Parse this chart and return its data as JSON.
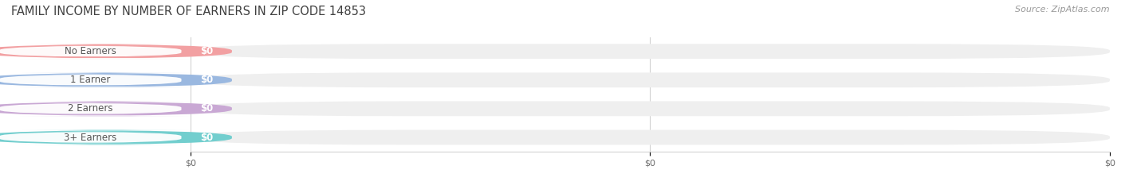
{
  "title": "FAMILY INCOME BY NUMBER OF EARNERS IN ZIP CODE 14853",
  "source": "Source: ZipAtlas.com",
  "categories": [
    "No Earners",
    "1 Earner",
    "2 Earners",
    "3+ Earners"
  ],
  "values": [
    0,
    0,
    0,
    0
  ],
  "bar_colors": [
    "#f2a0a2",
    "#9ab8e0",
    "#c9a8d4",
    "#72cece"
  ],
  "bg_bar_color": "#efefef",
  "category_label_color": "#555555",
  "title_color": "#404040",
  "source_color": "#999999",
  "figsize": [
    14.06,
    2.33
  ],
  "dpi": 100,
  "title_fontsize": 10.5,
  "label_fontsize": 8.5,
  "value_fontsize": 8.5,
  "source_fontsize": 8,
  "bar_height": 0.52,
  "xlim_max": 1.0,
  "xtick_positions": [
    0.0,
    0.5,
    1.0
  ],
  "xtick_labels": [
    "$0",
    "$0",
    "$0"
  ]
}
